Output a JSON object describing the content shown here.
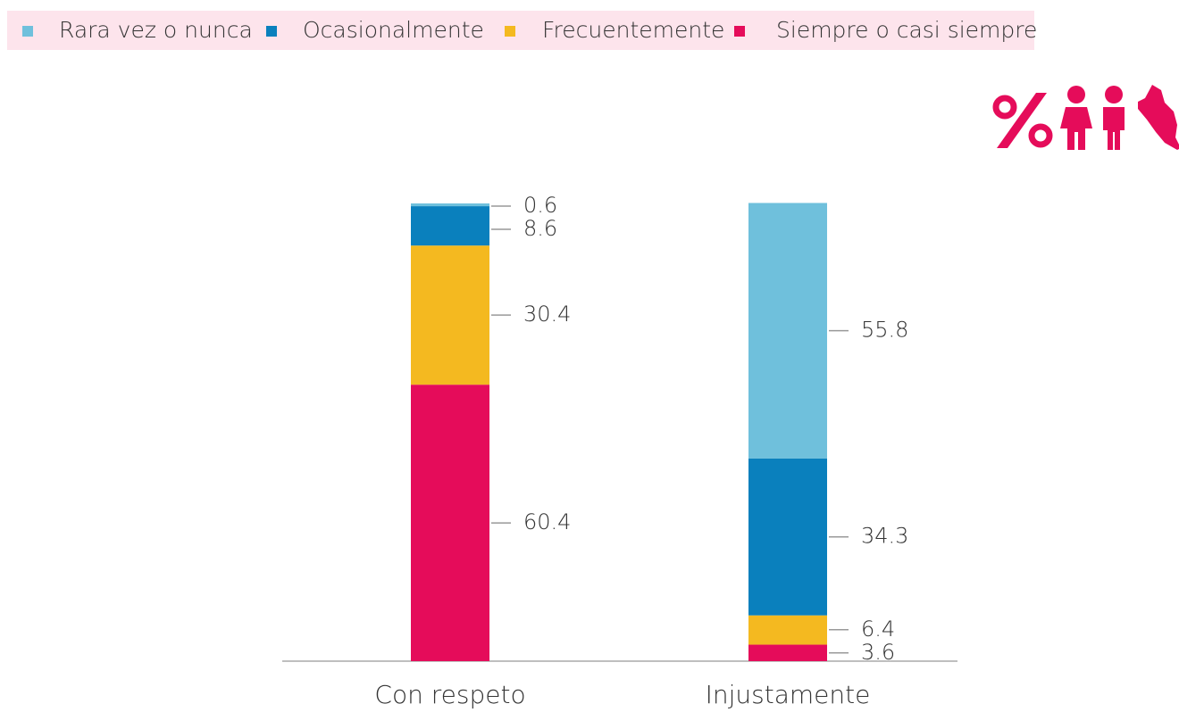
{
  "chart_data": {
    "type": "stacked_bar",
    "categories": [
      "Con respeto",
      "Injustamente"
    ],
    "series": [
      {
        "name": "Rara vez o nunca",
        "color": "#6fc0dc",
        "values": [
          0.6,
          55.8
        ]
      },
      {
        "name": "Ocasionalmente",
        "color": "#0a80bd",
        "values": [
          8.6,
          34.3
        ]
      },
      {
        "name": "Frecuentemente",
        "color": "#f4b920",
        "values": [
          30.4,
          6.4
        ]
      },
      {
        "name": "Siempre o casi siempre",
        "color": "#e50c5a",
        "values": [
          60.4,
          3.6
        ]
      }
    ],
    "ylim": [
      0,
      100
    ]
  }
}
